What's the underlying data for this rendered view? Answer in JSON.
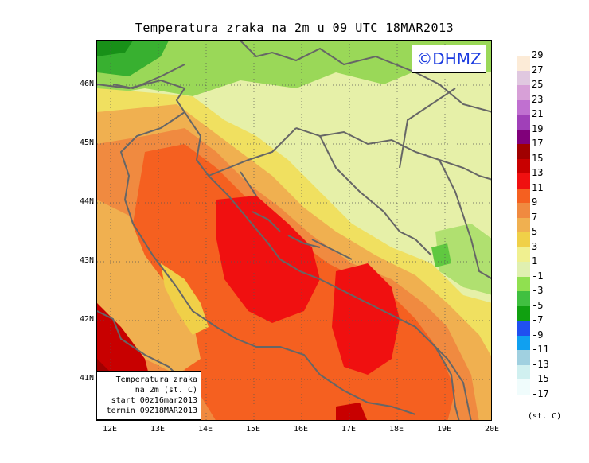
{
  "title": "Temperatura zraka na 2m u 09 UTC 18MAR2013",
  "logo": "©DHMZ",
  "info_box": [
    "Temperatura zraka",
    "na 2m (st. C)",
    "start 00z16mar2013",
    "termin 09Z18MAR2013"
  ],
  "lat_labels": [
    "46N",
    "45N",
    "44N",
    "43N",
    "42N",
    "41N"
  ],
  "lon_labels": [
    "12E",
    "13E",
    "14E",
    "15E",
    "16E",
    "17E",
    "18E",
    "19E",
    "20E"
  ],
  "legend": {
    "labels": [
      "29",
      "27",
      "25",
      "23",
      "21",
      "19",
      "17",
      "15",
      "13",
      "11",
      "9",
      "7",
      "5",
      "3",
      "1",
      "-1",
      "-3",
      "-5",
      "-7",
      "-9",
      "-11",
      "-13",
      "-15",
      "-17"
    ],
    "colors": [
      "#fcebd7",
      "#e0c8e0",
      "#d7a0d7",
      "#c070d0",
      "#a040b8",
      "#80007a",
      "#a00000",
      "#c80000",
      "#f01010",
      "#f56020",
      "#f08a40",
      "#f0b050",
      "#f0d048",
      "#f0f090",
      "#e0f0b0",
      "#90e050",
      "#40c040",
      "#10a010",
      "#2050f0",
      "#10a0f0",
      "#a0d0e0",
      "#d0f0f0",
      "#f0fcfc"
    ],
    "unit": "(st. C)"
  }
}
